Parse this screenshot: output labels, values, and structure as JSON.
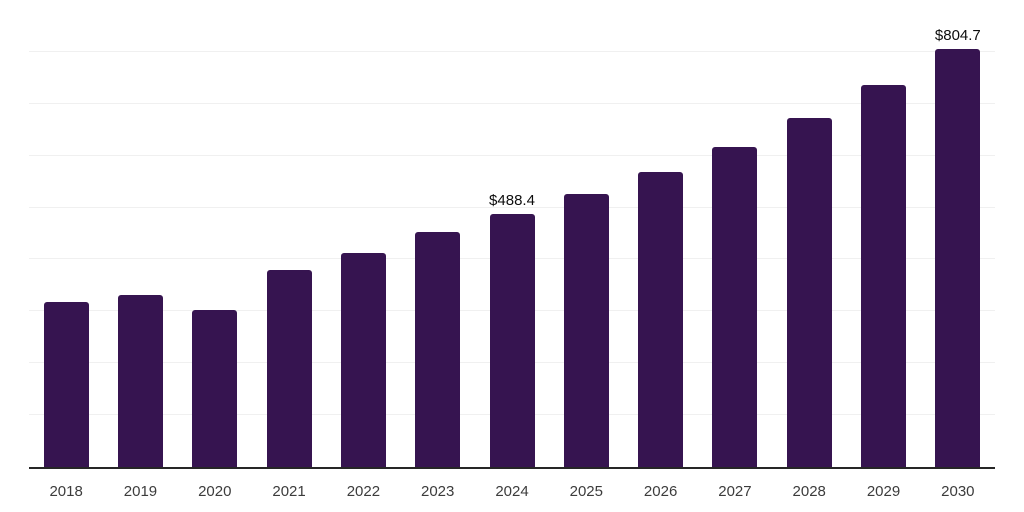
{
  "chart_data": {
    "type": "bar",
    "title": "",
    "xlabel": "",
    "ylabel": "",
    "categories": [
      "2018",
      "2019",
      "2020",
      "2021",
      "2022",
      "2023",
      "2024",
      "2025",
      "2026",
      "2027",
      "2028",
      "2029",
      "2030"
    ],
    "values": [
      317.2,
      331.0,
      302.3,
      379.8,
      412.2,
      453.1,
      488.4,
      526.2,
      569.2,
      616.3,
      672.7,
      735.8,
      804.7
    ],
    "data_labels": {
      "2024": "$488.4",
      "2030": "$804.7"
    },
    "ylim": [
      0,
      900
    ],
    "grid_step": 100,
    "grid": "horizontal-only",
    "legend_position": "none",
    "colors": {
      "bar": "#361450",
      "axis_line": "#262626",
      "gridline": "#f0f0f0",
      "tick_label": "#3c3c3c",
      "data_label": "#0d0d0d",
      "background": "#ffffff"
    }
  }
}
